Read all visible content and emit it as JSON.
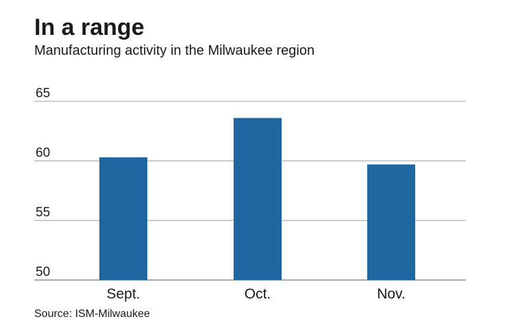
{
  "chart_data": {
    "type": "bar",
    "title": "In a range",
    "subtitle": "Manufacturing activity in the Milwaukee region",
    "categories": [
      "Sept.",
      "Oct.",
      "Nov."
    ],
    "values": [
      60.3,
      63.6,
      59.7
    ],
    "yticks": [
      65,
      60,
      55,
      50
    ],
    "ylim": [
      50,
      65
    ],
    "xlabel": "",
    "ylabel": "",
    "grid": true,
    "source": "Source: ISM-Milwaukee",
    "bar_color": "#1f67a0"
  }
}
